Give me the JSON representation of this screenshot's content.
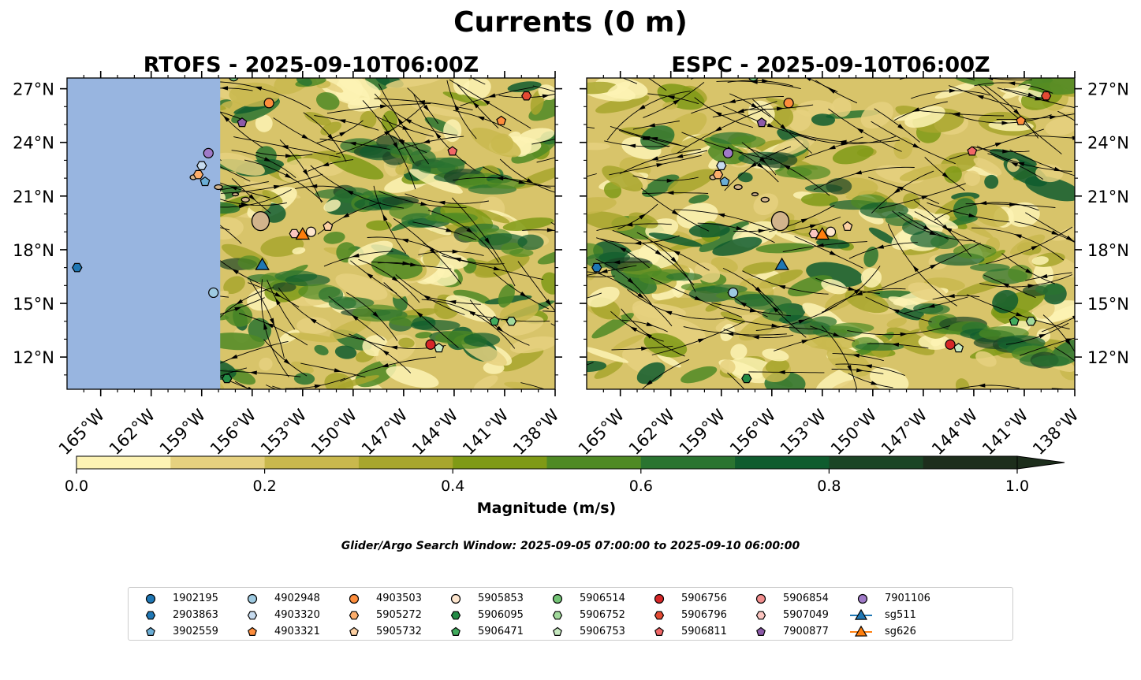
{
  "figure": {
    "title": "Currents (0 m)",
    "search_window": "Glider/Argo Search Window: 2025-09-05 07:00:00 to 2025-09-10 06:00:00",
    "colors": {
      "land": "#d2b48c",
      "no_data": "#98b5e0",
      "streamline": "#000000"
    }
  },
  "chart_data": [
    {
      "type": "heatmap",
      "title": "RTOFS - 2025-09-10T06:00Z",
      "x_ticks": [
        "165°W",
        "162°W",
        "159°W",
        "156°W",
        "153°W",
        "150°W",
        "147°W",
        "144°W",
        "141°W",
        "138°W"
      ],
      "y_ticks": [
        "27°N",
        "24°N",
        "21°N",
        "18°N",
        "15°N",
        "12°N"
      ],
      "xlim": [
        -167,
        -138
      ],
      "ylim": [
        10.2,
        27.6
      ],
      "masked_west_of_lon": -157.9,
      "overlay": "streamlines"
    },
    {
      "type": "heatmap",
      "title": "ESPC - 2025-09-10T06:00Z",
      "x_ticks": [
        "165°W",
        "162°W",
        "159°W",
        "156°W",
        "153°W",
        "150°W",
        "147°W",
        "144°W",
        "141°W",
        "138°W"
      ],
      "y_ticks": [
        "27°N",
        "24°N",
        "21°N",
        "18°N",
        "15°N",
        "12°N"
      ],
      "xlim": [
        -167,
        -138
      ],
      "ylim": [
        10.2,
        27.6
      ],
      "overlay": "streamlines"
    }
  ],
  "colorbar": {
    "label": "Magnitude (m/s)",
    "ticks": [
      "0.0",
      "0.2",
      "0.4",
      "0.6",
      "0.8",
      "1.0"
    ],
    "range": [
      0,
      1
    ],
    "extend": "max",
    "colors": [
      "#fdf3b4",
      "#e6d17f",
      "#c9b84d",
      "#a8a62d",
      "#7f9a16",
      "#4f8a24",
      "#2a7430",
      "#0f5c2e",
      "#1b4525",
      "#1d2e1c"
    ]
  },
  "legend": {
    "entries": [
      {
        "label": "1902195",
        "marker": "circle",
        "color": "#1f77b4",
        "lon": null,
        "lat": null
      },
      {
        "label": "2903863",
        "marker": "hexagon",
        "color": "#1f77b4",
        "lon": -166.4,
        "lat": 17.0
      },
      {
        "label": "3902559",
        "marker": "pentagon",
        "color": "#6baed6",
        "lon": -158.8,
        "lat": 21.8
      },
      {
        "label": "4902948",
        "marker": "circle",
        "color": "#9ecae1",
        "lon": -158.3,
        "lat": 15.6
      },
      {
        "label": "4903320",
        "marker": "hexagon",
        "color": "#c6dbef",
        "lon": -159.0,
        "lat": 22.7
      },
      {
        "label": "4903321",
        "marker": "pentagon",
        "color": "#fd8d3c",
        "lon": -141.2,
        "lat": 25.2
      },
      {
        "label": "4903503",
        "marker": "circle",
        "color": "#fd8d3c",
        "lon": -155.0,
        "lat": 26.2
      },
      {
        "label": "5905272",
        "marker": "hexagon",
        "color": "#fdae6b",
        "lon": -159.2,
        "lat": 22.2
      },
      {
        "label": "5905732",
        "marker": "pentagon",
        "color": "#fdd0a2",
        "lon": -151.5,
        "lat": 19.3
      },
      {
        "label": "5905853",
        "marker": "circle",
        "color": "#fee6ce",
        "lon": -152.5,
        "lat": 19.0
      },
      {
        "label": "5906095",
        "marker": "hexagon",
        "color": "#238b45",
        "lon": -157.5,
        "lat": 10.8
      },
      {
        "label": "5906471",
        "marker": "pentagon",
        "color": "#41ab5d",
        "lon": -141.6,
        "lat": 14.0
      },
      {
        "label": "5906514",
        "marker": "circle",
        "color": "#74c476",
        "lon": -157.1,
        "lat": 27.7
      },
      {
        "label": "5906752",
        "marker": "hexagon",
        "color": "#a1d99b",
        "lon": -140.6,
        "lat": 14.0
      },
      {
        "label": "5906753",
        "marker": "pentagon",
        "color": "#c7e9c0",
        "lon": -144.9,
        "lat": 12.5
      },
      {
        "label": "5906756",
        "marker": "circle",
        "color": "#d62728",
        "lon": -145.4,
        "lat": 12.7
      },
      {
        "label": "5906796",
        "marker": "hexagon",
        "color": "#e34a33",
        "lon": -139.7,
        "lat": 26.6
      },
      {
        "label": "5906811",
        "marker": "pentagon",
        "color": "#f16767",
        "lon": -144.1,
        "lat": 23.5
      },
      {
        "label": "5906854",
        "marker": "circle",
        "color": "#f28e8e",
        "lon": null,
        "lat": null
      },
      {
        "label": "5907049",
        "marker": "hexagon",
        "color": "#fcc5c0",
        "lon": -153.5,
        "lat": 18.9
      },
      {
        "label": "7900877",
        "marker": "pentagon",
        "color": "#8c5aa8",
        "lon": -156.6,
        "lat": 25.1
      },
      {
        "label": "7901106",
        "marker": "circle",
        "color": "#a07ac8",
        "lon": -158.6,
        "lat": 23.4
      },
      {
        "label": "sg511",
        "marker": "triangle-line",
        "color": "#1f77b4",
        "lon": -155.4,
        "lat": 17.1
      },
      {
        "label": "sg626",
        "marker": "triangle-line",
        "color": "#ff7f0e",
        "lon": -153.0,
        "lat": 18.8
      }
    ]
  }
}
